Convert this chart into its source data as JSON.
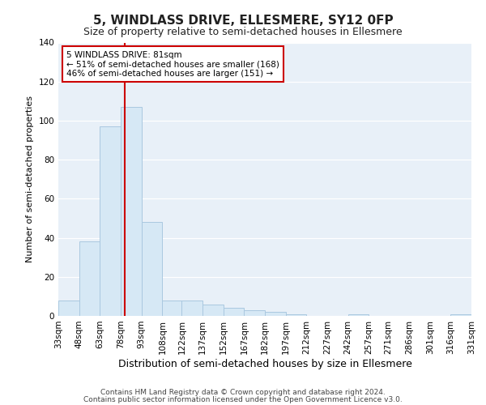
{
  "title": "5, WINDLASS DRIVE, ELLESMERE, SY12 0FP",
  "subtitle": "Size of property relative to semi-detached houses in Ellesmere",
  "xlabel": "Distribution of semi-detached houses by size in Ellesmere",
  "ylabel": "Number of semi-detached properties",
  "footer_line1": "Contains HM Land Registry data © Crown copyright and database right 2024.",
  "footer_line2": "Contains public sector information licensed under the Open Government Licence v3.0.",
  "annotation_title": "5 WINDLASS DRIVE: 81sqm",
  "annotation_line1": "← 51% of semi-detached houses are smaller (168)",
  "annotation_line2": "46% of semi-detached houses are larger (151) →",
  "bin_edges": [
    33,
    48,
    63,
    78,
    93,
    108,
    122,
    137,
    152,
    167,
    182,
    197,
    212,
    227,
    242,
    257,
    271,
    286,
    301,
    316,
    331
  ],
  "bin_counts": [
    8,
    38,
    97,
    107,
    48,
    8,
    8,
    6,
    4,
    3,
    2,
    1,
    0,
    0,
    1,
    0,
    0,
    0,
    0,
    1
  ],
  "bar_color": "#d6e8f5",
  "bar_edge_color": "#aac8e0",
  "vline_color": "#cc0000",
  "vline_x": 81,
  "ylim": [
    0,
    140
  ],
  "yticks": [
    0,
    20,
    40,
    60,
    80,
    100,
    120,
    140
  ],
  "plot_bg_color": "#e8f0f8",
  "fig_bg_color": "#ffffff",
  "grid_color": "#ffffff",
  "annotation_box_facecolor": "#ffffff",
  "annotation_box_edgecolor": "#cc0000",
  "title_fontsize": 11,
  "subtitle_fontsize": 9,
  "xlabel_fontsize": 9,
  "ylabel_fontsize": 8,
  "tick_fontsize": 7.5,
  "footer_fontsize": 6.5
}
